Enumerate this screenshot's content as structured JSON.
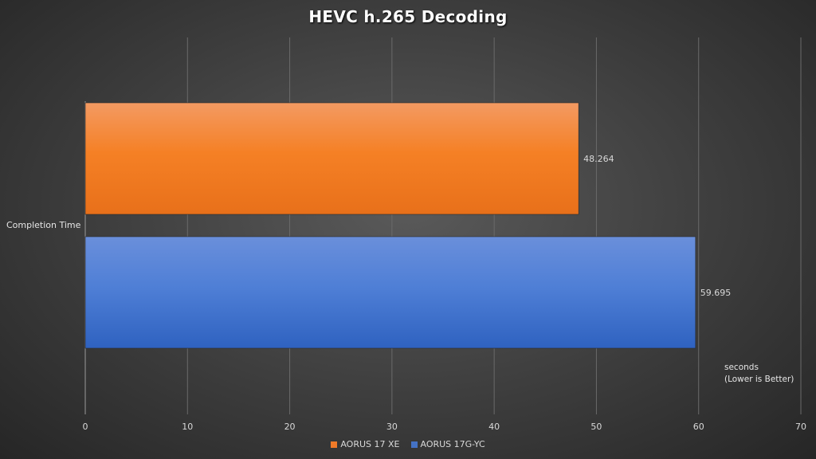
{
  "chart_data": {
    "type": "bar",
    "orientation": "horizontal",
    "title": "HEVC h.265  Decoding",
    "categories": [
      "Completion Time"
    ],
    "series": [
      {
        "name": "AORUS 17 XE",
        "values": [
          48.264
        ],
        "value_labels": [
          "48.264"
        ],
        "color": "#f07a28"
      },
      {
        "name": "AORUS 17G-YC",
        "values": [
          59.695
        ],
        "value_labels": [
          "59.695"
        ],
        "color": "#4472c4"
      }
    ],
    "xlim": [
      0,
      70
    ],
    "xticks": [
      0,
      10,
      20,
      30,
      40,
      50,
      60,
      70
    ],
    "axis_note_line1": "seconds",
    "axis_note_line2": "(Lower is Better)",
    "grid": "vertical",
    "legend_position": "bottom"
  }
}
